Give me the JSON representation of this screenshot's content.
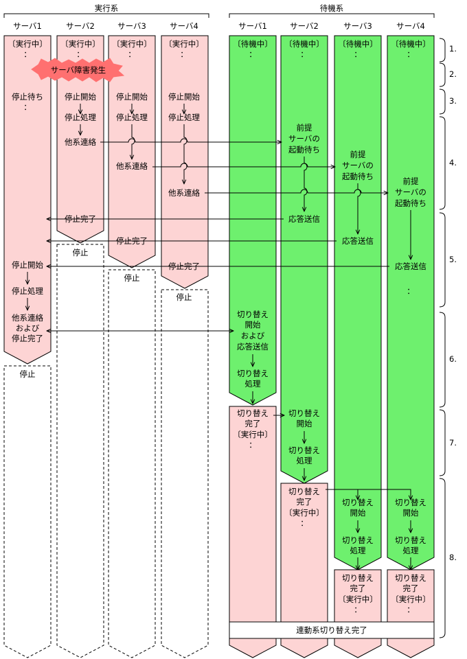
{
  "groups": {
    "active": "実行系",
    "standby": "待機系"
  },
  "columns": {
    "a1": "サーバ1",
    "a2": "サーバ2",
    "a3": "サーバ3",
    "a4": "サーバ4",
    "s1": "サーバ1",
    "s2": "サーバ2",
    "s3": "サーバ3",
    "s4": "サーバ4"
  },
  "phases": [
    "1.",
    "2.",
    "3.",
    "4.",
    "5.",
    "6.",
    "7.",
    "8."
  ],
  "labels": {
    "running": "〔実行中〕",
    "waiting_state": "〔待機中〕",
    "dots": "：",
    "failure": "サーバ障害発生",
    "wait_stop": "停止待ち",
    "stop_start": "停止開始",
    "stop_process": "停止処理",
    "notify_other": "他系連絡",
    "stop_complete": "停止完了",
    "stopped": "停止",
    "notify_and": "他系連絡",
    "oyobi": "および",
    "prereq": "前提",
    "server_no": "サーバの",
    "startup_wait": "起動待ち",
    "reply_send": "応答送信",
    "switch": "切り替え",
    "start": "開始",
    "switch_process_tail": "処理",
    "complete": "完了",
    "reply_send2": "応答送信",
    "linked_complete": "連動系切り替え完了"
  }
}
